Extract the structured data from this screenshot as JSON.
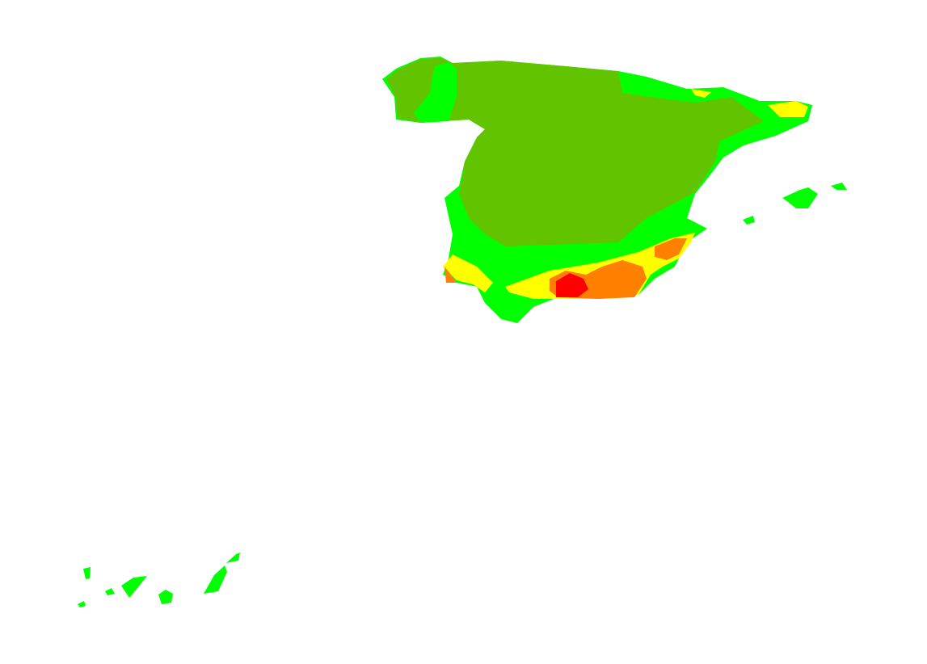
{
  "map": {
    "zones": [
      {
        "color": "#00ff00"
      },
      {
        "color": "#62c400"
      },
      {
        "color": "#ffff00"
      },
      {
        "color": "#ff8000"
      },
      {
        "color": "#ff0000"
      }
    ]
  }
}
